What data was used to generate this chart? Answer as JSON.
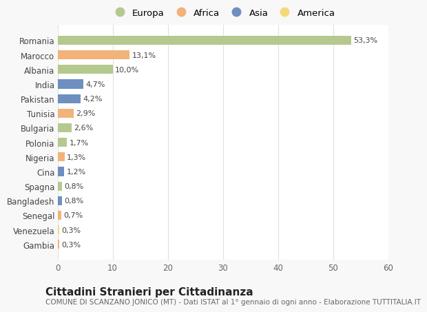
{
  "countries": [
    "Romania",
    "Marocco",
    "Albania",
    "India",
    "Pakistan",
    "Tunisia",
    "Bulgaria",
    "Polonia",
    "Nigeria",
    "Cina",
    "Spagna",
    "Bangladesh",
    "Senegal",
    "Venezuela",
    "Gambia"
  ],
  "values": [
    53.3,
    13.1,
    10.0,
    4.7,
    4.2,
    2.9,
    2.6,
    1.7,
    1.3,
    1.2,
    0.8,
    0.8,
    0.7,
    0.3,
    0.3
  ],
  "labels": [
    "53,3%",
    "13,1%",
    "10,0%",
    "4,7%",
    "4,2%",
    "2,9%",
    "2,6%",
    "1,7%",
    "1,3%",
    "1,2%",
    "0,8%",
    "0,8%",
    "0,7%",
    "0,3%",
    "0,3%"
  ],
  "continents": [
    "Europa",
    "Africa",
    "Europa",
    "Asia",
    "Asia",
    "Africa",
    "Europa",
    "Europa",
    "Africa",
    "Asia",
    "Europa",
    "Asia",
    "Africa",
    "America",
    "Africa"
  ],
  "continent_colors": {
    "Europa": "#b5c98e",
    "Africa": "#f2b27a",
    "Asia": "#6e8fbf",
    "America": "#f5d87a"
  },
  "legend_order": [
    "Europa",
    "Africa",
    "Asia",
    "America"
  ],
  "title": "Cittadini Stranieri per Cittadinanza",
  "subtitle": "COMUNE DI SCANZANO JONICO (MT) - Dati ISTAT al 1° gennaio di ogni anno - Elaborazione TUTTITALIA.IT",
  "xlim": [
    0,
    60
  ],
  "xticks": [
    0,
    10,
    20,
    30,
    40,
    50,
    60
  ],
  "background_color": "#f8f8f8",
  "plot_bg_color": "#ffffff",
  "grid_color": "#e0e0e0",
  "title_fontsize": 11,
  "subtitle_fontsize": 7.5,
  "label_fontsize": 8,
  "tick_fontsize": 8.5,
  "legend_fontsize": 9.5
}
